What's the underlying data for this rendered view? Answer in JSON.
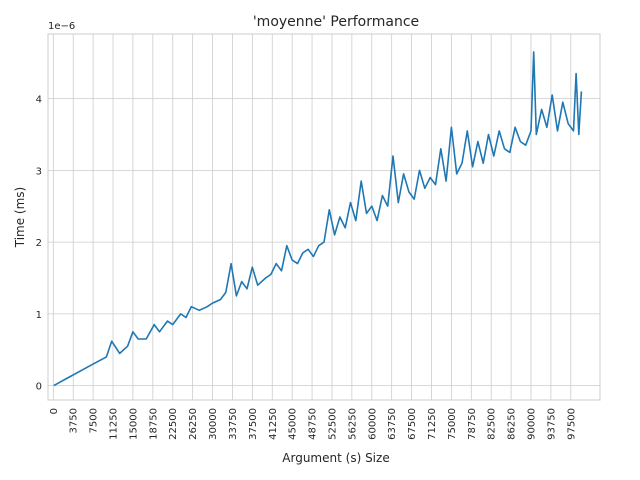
{
  "chart_data": {
    "type": "line",
    "title": "'moyenne' Performance",
    "xlabel": "Argument (s) Size",
    "ylabel": "Time (ms)",
    "y_scale_label": "1e−6",
    "xlim": [
      -1000,
      103000
    ],
    "ylim": [
      -0.2,
      4.9
    ],
    "grid": true,
    "line_color": "#1f77b4",
    "x_ticks": [
      0,
      3750,
      7500,
      11250,
      15000,
      18750,
      22500,
      26250,
      30000,
      33750,
      37500,
      41250,
      45000,
      48750,
      52500,
      56250,
      60000,
      63750,
      67500,
      71250,
      75000,
      78750,
      82500,
      86250,
      90000,
      93750,
      97500
    ],
    "y_ticks": [
      0,
      1,
      2,
      3,
      4
    ],
    "series": [
      {
        "x": [
          100,
          2500,
          5000,
          7500,
          10000,
          11000,
          12500,
          14000,
          15000,
          16000,
          17500,
          19000,
          20000,
          21500,
          22500,
          24000,
          25000,
          26000,
          27500,
          29000,
          30000,
          31500,
          32500,
          33500,
          34500,
          35500,
          36500,
          37500,
          38500,
          40000,
          41000,
          42000,
          43000,
          44000,
          45000,
          46000,
          47000,
          48000,
          49000,
          50000,
          51000,
          52000,
          53000,
          54000,
          55000,
          56000,
          57000,
          58000,
          59000,
          60000,
          61000,
          62000,
          63000,
          64000,
          65000,
          66000,
          67000,
          68000,
          69000,
          70000,
          71000,
          72000,
          73000,
          74000,
          75000,
          76000,
          77000,
          78000,
          79000,
          80000,
          81000,
          82000,
          83000,
          84000,
          85000,
          86000,
          87000,
          88000,
          89000,
          90000,
          90500,
          91000,
          92000,
          93000,
          94000,
          95000,
          96000,
          97000,
          98000,
          98500,
          99000,
          99500
        ],
        "y": [
          0.0,
          0.1,
          0.2,
          0.3,
          0.4,
          0.62,
          0.45,
          0.55,
          0.75,
          0.65,
          0.65,
          0.85,
          0.75,
          0.9,
          0.85,
          1.0,
          0.95,
          1.1,
          1.05,
          1.1,
          1.15,
          1.2,
          1.3,
          1.7,
          1.25,
          1.45,
          1.35,
          1.65,
          1.4,
          1.5,
          1.55,
          1.7,
          1.6,
          1.95,
          1.75,
          1.7,
          1.85,
          1.9,
          1.8,
          1.95,
          2.0,
          2.45,
          2.1,
          2.35,
          2.2,
          2.55,
          2.3,
          2.85,
          2.4,
          2.5,
          2.3,
          2.65,
          2.5,
          3.2,
          2.55,
          2.95,
          2.7,
          2.6,
          3.0,
          2.75,
          2.9,
          2.8,
          3.3,
          2.85,
          3.6,
          2.95,
          3.1,
          3.55,
          3.05,
          3.4,
          3.1,
          3.5,
          3.2,
          3.55,
          3.3,
          3.25,
          3.6,
          3.4,
          3.35,
          3.55,
          4.65,
          3.5,
          3.85,
          3.6,
          4.05,
          3.55,
          3.95,
          3.65,
          3.55,
          4.35,
          3.5,
          4.1
        ]
      }
    ]
  }
}
